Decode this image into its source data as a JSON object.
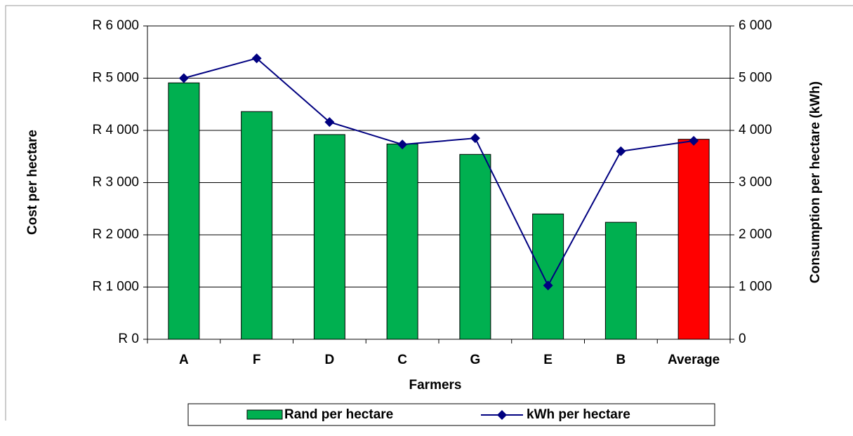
{
  "chart_data": {
    "type": "bar-line",
    "xlabel": "Farmers",
    "ylabel": "Cost per hectare",
    "y2label": "Consumption per hectare (kWh)",
    "categories": [
      "A",
      "F",
      "D",
      "C",
      "G",
      "E",
      "B",
      "Average"
    ],
    "series": [
      {
        "name": "Rand per hectare",
        "type": "bar",
        "color": "#00b050",
        "colors": [
          "#00b050",
          "#00b050",
          "#00b050",
          "#00b050",
          "#00b050",
          "#00b050",
          "#00b050",
          "#ff0000"
        ],
        "values": [
          4910,
          4360,
          3920,
          3740,
          3540,
          2400,
          2240,
          3830
        ]
      },
      {
        "name": "kWh per hectare",
        "type": "line",
        "axis": "y2",
        "color": "#000080",
        "values": [
          5000,
          5380,
          4160,
          3730,
          3850,
          1030,
          3600,
          3800
        ]
      }
    ],
    "ylim": [
      0,
      6000
    ],
    "yticks": [
      {
        "value": 0,
        "label": "R 0"
      },
      {
        "value": 1000,
        "label": "R 1 000"
      },
      {
        "value": 2000,
        "label": "R 2 000"
      },
      {
        "value": 3000,
        "label": "R 3 000"
      },
      {
        "value": 4000,
        "label": "R 4 000"
      },
      {
        "value": 5000,
        "label": "R 5 000"
      },
      {
        "value": 6000,
        "label": "R 6 000"
      }
    ],
    "y2lim": [
      0,
      6000
    ],
    "y2ticks": [
      0,
      {
        "value": 1000,
        "label": "1 000"
      },
      {
        "value": 2000,
        "label": "2 000"
      },
      {
        "value": 3000,
        "label": "3 000"
      },
      {
        "value": 4000,
        "label": "4 000"
      },
      {
        "value": 5000,
        "label": "5 000"
      },
      {
        "value": 6000,
        "label": "6 000"
      }
    ],
    "grid": true,
    "legend": "bottom"
  }
}
